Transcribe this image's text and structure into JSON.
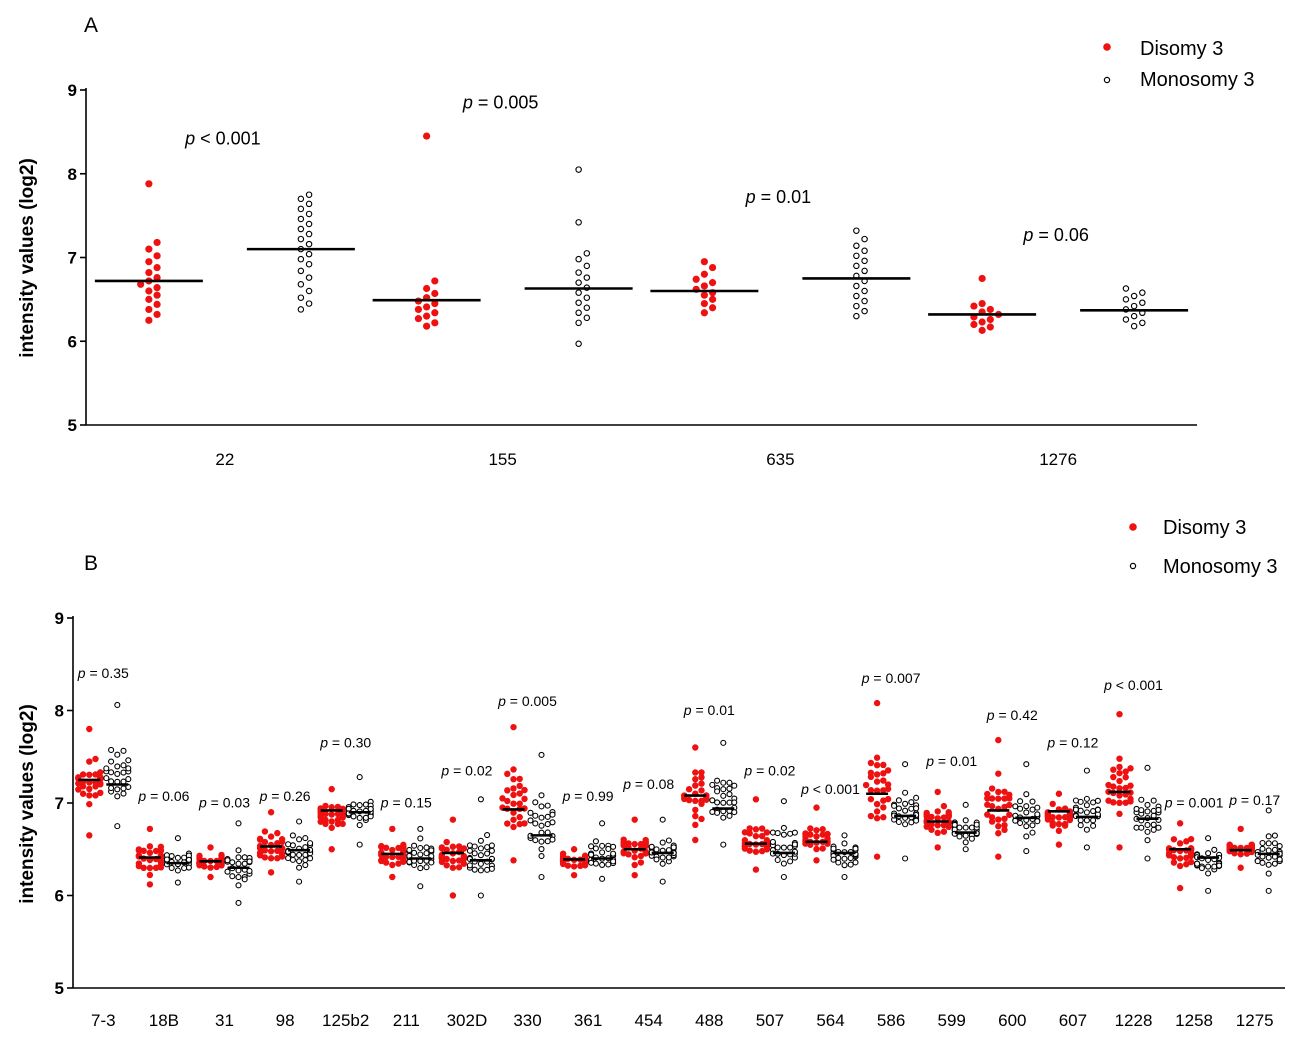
{
  "colors": {
    "disomy": "#ee1111",
    "monosomy": "#ffffff",
    "outline": "#000000"
  },
  "chart_data": [
    {
      "panel": "A",
      "type": "scatter",
      "ylabel": "intensity values (log2)",
      "ylim": [
        5,
        9
      ],
      "yticks": [
        "5",
        "6",
        "7",
        "8",
        "9"
      ],
      "categories": [
        "22",
        "155",
        "635",
        "1276"
      ],
      "legend": {
        "position": "top-right",
        "items": [
          "Disomy 3",
          "Monosomy 3"
        ]
      },
      "series": [
        {
          "name": "Disomy 3",
          "means": [
            6.72,
            6.49,
            6.6,
            6.32
          ],
          "points": [
            [
              6.25,
              6.32,
              6.38,
              6.44,
              6.5,
              6.55,
              6.6,
              6.64,
              6.68,
              6.72,
              6.76,
              6.82,
              6.88,
              6.95,
              7.02,
              7.1,
              7.18,
              7.88
            ],
            [
              6.18,
              6.22,
              6.27,
              6.3,
              6.34,
              6.38,
              6.41,
              6.45,
              6.48,
              6.52,
              6.57,
              6.63,
              6.72,
              8.45
            ],
            [
              6.34,
              6.4,
              6.45,
              6.5,
              6.55,
              6.58,
              6.62,
              6.66,
              6.7,
              6.74,
              6.8,
              6.88,
              6.95
            ],
            [
              6.13,
              6.17,
              6.2,
              6.23,
              6.26,
              6.29,
              6.32,
              6.35,
              6.38,
              6.42,
              6.45,
              6.75
            ]
          ]
        },
        {
          "name": "Monosomy 3",
          "means": [
            7.1,
            6.63,
            6.75,
            6.37
          ],
          "points": [
            [
              6.38,
              6.45,
              6.52,
              6.6,
              6.68,
              6.76,
              6.84,
              6.92,
              6.98,
              7.04,
              7.1,
              7.16,
              7.22,
              7.28,
              7.34,
              7.4,
              7.46,
              7.52,
              7.58,
              7.64,
              7.7,
              7.75
            ],
            [
              5.97,
              6.22,
              6.28,
              6.34,
              6.4,
              6.46,
              6.52,
              6.58,
              6.64,
              6.7,
              6.76,
              6.82,
              6.9,
              6.98,
              7.05,
              7.42,
              8.05
            ],
            [
              6.3,
              6.36,
              6.42,
              6.48,
              6.54,
              6.6,
              6.66,
              6.72,
              6.78,
              6.84,
              6.9,
              6.96,
              7.02,
              7.08,
              7.14,
              7.22,
              7.32
            ],
            [
              6.18,
              6.22,
              6.26,
              6.3,
              6.34,
              6.38,
              6.42,
              6.46,
              6.5,
              6.54,
              6.58,
              6.63
            ]
          ]
        }
      ],
      "annotations": [
        {
          "category": "22",
          "prefix": "p",
          "text": " < 0.001",
          "y": 8.35
        },
        {
          "category": "155",
          "prefix": "p",
          "text": " = 0.005",
          "y": 8.78
        },
        {
          "category": "635",
          "prefix": "p",
          "text": " = 0.01",
          "y": 7.65
        },
        {
          "category": "1276",
          "prefix": "p",
          "text": " = 0.06",
          "y": 7.2
        }
      ]
    },
    {
      "panel": "B",
      "type": "scatter",
      "ylabel": "intensity values (log2)",
      "ylim": [
        5,
        9
      ],
      "yticks": [
        "5",
        "6",
        "7",
        "8",
        "9"
      ],
      "categories": [
        "7-3",
        "18B",
        "31",
        "98",
        "125b2",
        "211",
        "302D",
        "330",
        "361",
        "454",
        "488",
        "507",
        "564",
        "586",
        "599",
        "600",
        "607",
        "1228",
        "1258",
        "1275"
      ],
      "legend": {
        "position": "top-right",
        "items": [
          "Disomy 3",
          "Monosomy 3"
        ]
      },
      "series": [
        {
          "name": "Disomy 3",
          "means": [
            7.25,
            6.41,
            6.37,
            6.53,
            6.92,
            6.45,
            6.46,
            6.93,
            6.39,
            6.5,
            7.08,
            6.56,
            6.58,
            7.1,
            6.8,
            6.92,
            6.91,
            7.12,
            6.5,
            6.49
          ],
          "low": [
            6.65,
            6.12,
            6.2,
            6.25,
            6.5,
            6.2,
            6.0,
            6.38,
            6.22,
            6.22,
            6.6,
            6.28,
            6.38,
            6.42,
            6.52,
            6.42,
            6.55,
            6.52,
            6.08,
            6.3
          ],
          "high": [
            7.8,
            6.72,
            6.52,
            6.9,
            7.15,
            6.72,
            6.82,
            7.82,
            6.5,
            6.82,
            7.6,
            7.04,
            6.95,
            8.08,
            7.12,
            7.68,
            7.1,
            7.96,
            6.78,
            6.72
          ]
        },
        {
          "name": "Monosomy 3",
          "means": [
            7.2,
            6.35,
            6.3,
            6.49,
            6.9,
            6.4,
            6.38,
            6.65,
            6.4,
            6.46,
            6.94,
            6.46,
            6.46,
            6.86,
            6.68,
            6.84,
            6.85,
            6.83,
            6.41,
            6.45
          ],
          "low": [
            6.75,
            6.14,
            5.92,
            6.15,
            6.55,
            6.1,
            6.0,
            6.2,
            6.18,
            6.15,
            6.55,
            6.2,
            6.2,
            6.4,
            6.5,
            6.48,
            6.52,
            6.4,
            6.05,
            6.05
          ],
          "high": [
            8.06,
            6.62,
            6.78,
            6.8,
            7.28,
            6.72,
            7.04,
            7.52,
            6.78,
            6.82,
            7.65,
            7.02,
            6.65,
            7.42,
            6.98,
            7.42,
            7.35,
            7.38,
            6.62,
            6.92
          ]
        }
      ],
      "annotations": [
        {
          "category": "7-3",
          "prefix": "p",
          "text": " = 0.35",
          "y": 8.35
        },
        {
          "category": "18B",
          "prefix": "p",
          "text": " = 0.06",
          "y": 7.02
        },
        {
          "category": "31",
          "prefix": "p",
          "text": " = 0.03",
          "y": 6.95
        },
        {
          "category": "98",
          "prefix": "p",
          "text": " = 0.26",
          "y": 7.02
        },
        {
          "category": "125b2",
          "prefix": "p",
          "text": " = 0.30",
          "y": 7.6
        },
        {
          "category": "211",
          "prefix": "p",
          "text": " = 0.15",
          "y": 6.95
        },
        {
          "category": "302D",
          "prefix": "p",
          "text": " = 0.02",
          "y": 7.3
        },
        {
          "category": "330",
          "prefix": "p",
          "text": " = 0.005",
          "y": 8.05
        },
        {
          "category": "361",
          "prefix": "p",
          "text": " = 0.99",
          "y": 7.02
        },
        {
          "category": "454",
          "prefix": "p",
          "text": " = 0.08",
          "y": 7.15
        },
        {
          "category": "488",
          "prefix": "p",
          "text": " = 0.01",
          "y": 7.95
        },
        {
          "category": "507",
          "prefix": "p",
          "text": " = 0.02",
          "y": 7.3
        },
        {
          "category": "564",
          "prefix": "p",
          "text": " < 0.001",
          "y": 7.1
        },
        {
          "category": "586",
          "prefix": "p",
          "text": " = 0.007",
          "y": 8.3
        },
        {
          "category": "599",
          "prefix": "p",
          "text": " = 0.01",
          "y": 7.4
        },
        {
          "category": "600",
          "prefix": "p",
          "text": " = 0.42",
          "y": 7.9
        },
        {
          "category": "607",
          "prefix": "p",
          "text": " = 0.12",
          "y": 7.6
        },
        {
          "category": "1228",
          "prefix": "p",
          "text": " < 0.001",
          "y": 8.22
        },
        {
          "category": "1258",
          "prefix": "p",
          "text": " = 0.001",
          "y": 6.95
        },
        {
          "category": "1275",
          "prefix": "p",
          "text": " = 0.17",
          "y": 6.98
        }
      ]
    }
  ]
}
